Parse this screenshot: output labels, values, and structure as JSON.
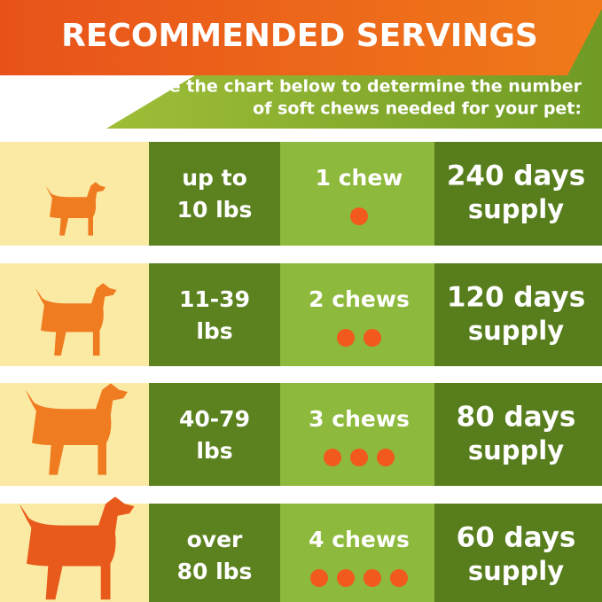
{
  "header": {
    "title": "RECOMMENDED SERVINGS",
    "subtitle": [
      "Use the chart below to determine the number",
      "of soft chews needed for your pet:"
    ]
  },
  "rows": [
    {
      "weight": [
        "up to",
        "10 lbs"
      ],
      "chews": "1 chew",
      "dots": 1,
      "supply": [
        "240 days",
        "supply"
      ]
    },
    {
      "weight": [
        "11-39",
        "lbs"
      ],
      "chews": "2 chews",
      "dots": 2,
      "supply": [
        "120 days",
        "supply"
      ]
    },
    {
      "weight": [
        "40-79",
        "lbs"
      ],
      "chews": "3 chews",
      "dots": 3,
      "supply": [
        "80 days",
        "supply"
      ]
    },
    {
      "weight": [
        "over",
        "80 lbs"
      ],
      "chews": "4 chews",
      "dots": 4,
      "supply": [
        "60 days",
        "supply"
      ]
    }
  ]
}
